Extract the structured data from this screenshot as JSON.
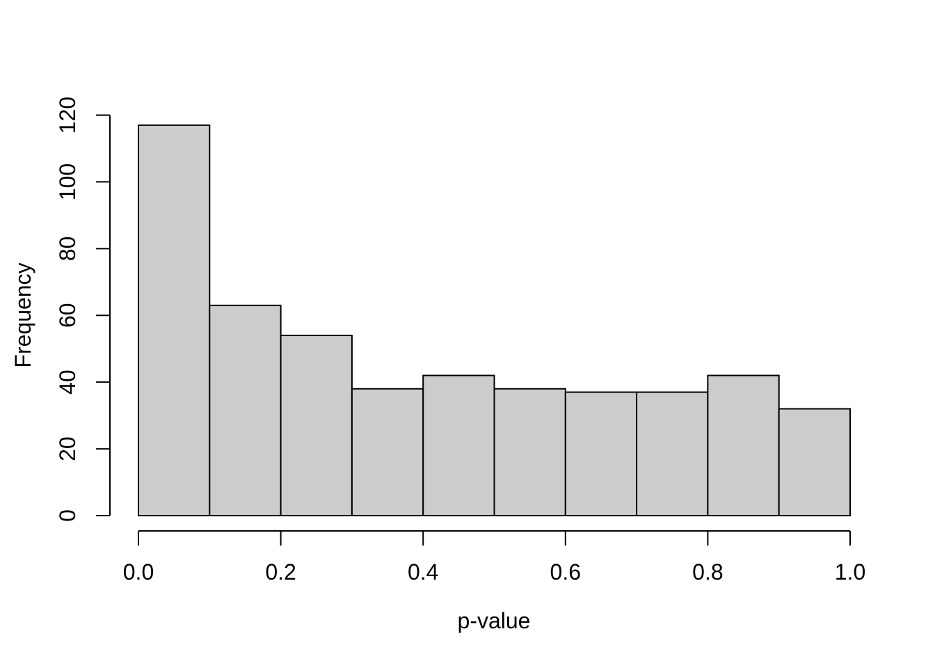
{
  "chart_data": {
    "type": "bar",
    "subtype": "histogram",
    "title": "",
    "xlabel": "p-value",
    "ylabel": "Frequency",
    "bin_start": 0.0,
    "bin_width": 0.1,
    "bin_edges": [
      0.0,
      0.1,
      0.2,
      0.3,
      0.4,
      0.5,
      0.6,
      0.7,
      0.8,
      0.9,
      1.0
    ],
    "values": [
      117,
      63,
      54,
      38,
      42,
      38,
      37,
      37,
      42,
      32
    ],
    "xlim": [
      0.0,
      1.0
    ],
    "ylim": [
      0,
      120
    ],
    "x_tick_values": [
      0.0,
      0.2,
      0.4,
      0.6,
      0.8,
      1.0
    ],
    "x_tick_labels": [
      "0.0",
      "0.2",
      "0.4",
      "0.6",
      "0.8",
      "1.0"
    ],
    "y_tick_values": [
      0,
      20,
      40,
      60,
      80,
      100,
      120
    ],
    "y_tick_labels": [
      "0",
      "20",
      "40",
      "60",
      "80",
      "100",
      "120"
    ],
    "grid": false,
    "legend": false,
    "colors": {
      "bar_fill": "#cccccc",
      "bar_stroke": "#000000",
      "axis": "#000000",
      "text": "#000000",
      "background": "#ffffff"
    }
  }
}
